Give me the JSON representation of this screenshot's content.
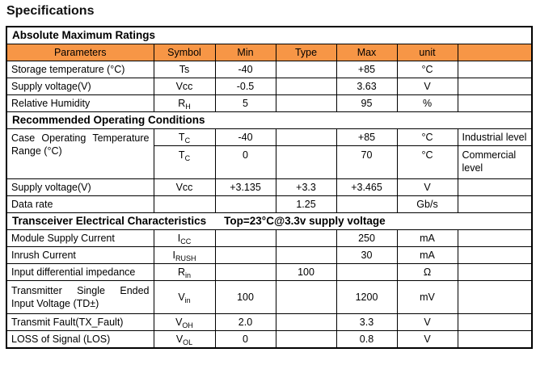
{
  "title": "Specifications",
  "colors": {
    "header_bg": "#F79646",
    "border": "#000000",
    "text": "#000000"
  },
  "table": {
    "header": {
      "parameters": "Parameters",
      "symbol": "Symbol",
      "min": "Min",
      "type": "Type",
      "max": "Max",
      "unit": "unit",
      "note": ""
    },
    "section1": {
      "title": "Absolute Maximum Ratings"
    },
    "amr": {
      "r1": {
        "param": "Storage temperature (°C)",
        "sym": "Ts",
        "sub": "",
        "min": "-40",
        "typ": "",
        "max": "+85",
        "unit": "°C",
        "note": ""
      },
      "r2": {
        "param": "Supply voltage(V)",
        "sym": "Vcc",
        "sub": "",
        "min": "-0.5",
        "typ": "",
        "max": "3.63",
        "unit": "V",
        "note": ""
      },
      "r3": {
        "param": "Relative Humidity",
        "sym": "R",
        "sub": "H",
        "min": "5",
        "typ": "",
        "max": "95",
        "unit": "%",
        "note": ""
      }
    },
    "section2": {
      "title": "Recommended Operating Conditions"
    },
    "roc": {
      "case_param": "Case Operating Temperature Range (°C)",
      "r1": {
        "sym": "T",
        "sub": "C",
        "min": "-40",
        "typ": "",
        "max": "+85",
        "unit": "°C",
        "note": "Industrial level"
      },
      "r2": {
        "sym": "T",
        "sub": "C",
        "min": "0",
        "typ": "",
        "max": "70",
        "unit": "°C",
        "note": "Commercial level"
      },
      "r3": {
        "param": "Supply voltage(V)",
        "sym": "Vcc",
        "sub": "",
        "min": "+3.135",
        "typ": "+3.3",
        "max": "+3.465",
        "unit": "V",
        "note": ""
      },
      "r4": {
        "param": "Data rate",
        "sym": "",
        "sub": "",
        "min": "",
        "typ": "1.25",
        "max": "",
        "unit": "Gb/s",
        "note": ""
      }
    },
    "section3": {
      "title": "Transceiver Electrical Characteristics",
      "condition": "Top=23°C@3.3v supply voltage"
    },
    "tec": {
      "r1": {
        "param": "Module Supply Current",
        "sym": "I",
        "sub": "CC",
        "min": "",
        "typ": "",
        "max": "250",
        "unit": "mA",
        "note": ""
      },
      "r2": {
        "param": "Inrush Current",
        "sym": "I",
        "sub": "RUSH",
        "min": "",
        "typ": "",
        "max": "30",
        "unit": "mA",
        "note": ""
      },
      "r3": {
        "param": "Input differential impedance",
        "sym": "R",
        "sub": "in",
        "min": "",
        "typ": "100",
        "max": "",
        "unit": "Ω",
        "note": ""
      },
      "r4": {
        "param": "Transmitter Single Ended Input Voltage (TD±)",
        "sym": "V",
        "sub": "in",
        "min": "100",
        "typ": "",
        "max": "1200",
        "unit": "mV",
        "note": ""
      },
      "r5": {
        "param": "Transmit Fault(TX_Fault)",
        "sym": "V",
        "sub": "OH",
        "min": "2.0",
        "typ": "",
        "max": "3.3",
        "unit": "V",
        "note": ""
      },
      "r6": {
        "param": "LOSS of Signal (LOS)",
        "sym": "V",
        "sub": "OL",
        "min": "0",
        "typ": "",
        "max": "0.8",
        "unit": "V",
        "note": ""
      }
    }
  }
}
